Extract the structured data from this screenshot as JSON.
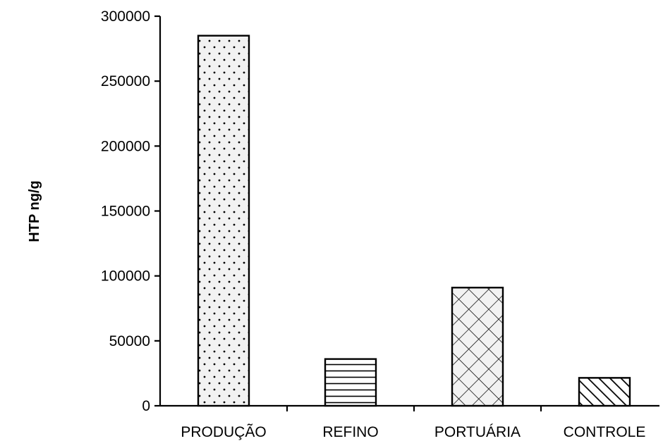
{
  "chart_data": {
    "type": "bar",
    "title": "",
    "xlabel": "",
    "ylabel": "HTP ng/g",
    "ylim": [
      0,
      300000
    ],
    "yticks": [
      0,
      50000,
      100000,
      150000,
      200000,
      250000,
      300000
    ],
    "grid": false,
    "legend": "none",
    "categories": [
      "PRODUÇÃO",
      "REFINO",
      "PORTUÁRIA",
      "CONTROLE"
    ],
    "values": [
      285000,
      36000,
      91000,
      21500
    ],
    "patterns": [
      "dotted",
      "horizontal-lines",
      "crosshatch-diagonal",
      "diagonal-lines"
    ],
    "colors": {
      "bar_fill": "#f2f2f2",
      "bar_stroke": "#000000",
      "axis": "#000000"
    }
  }
}
